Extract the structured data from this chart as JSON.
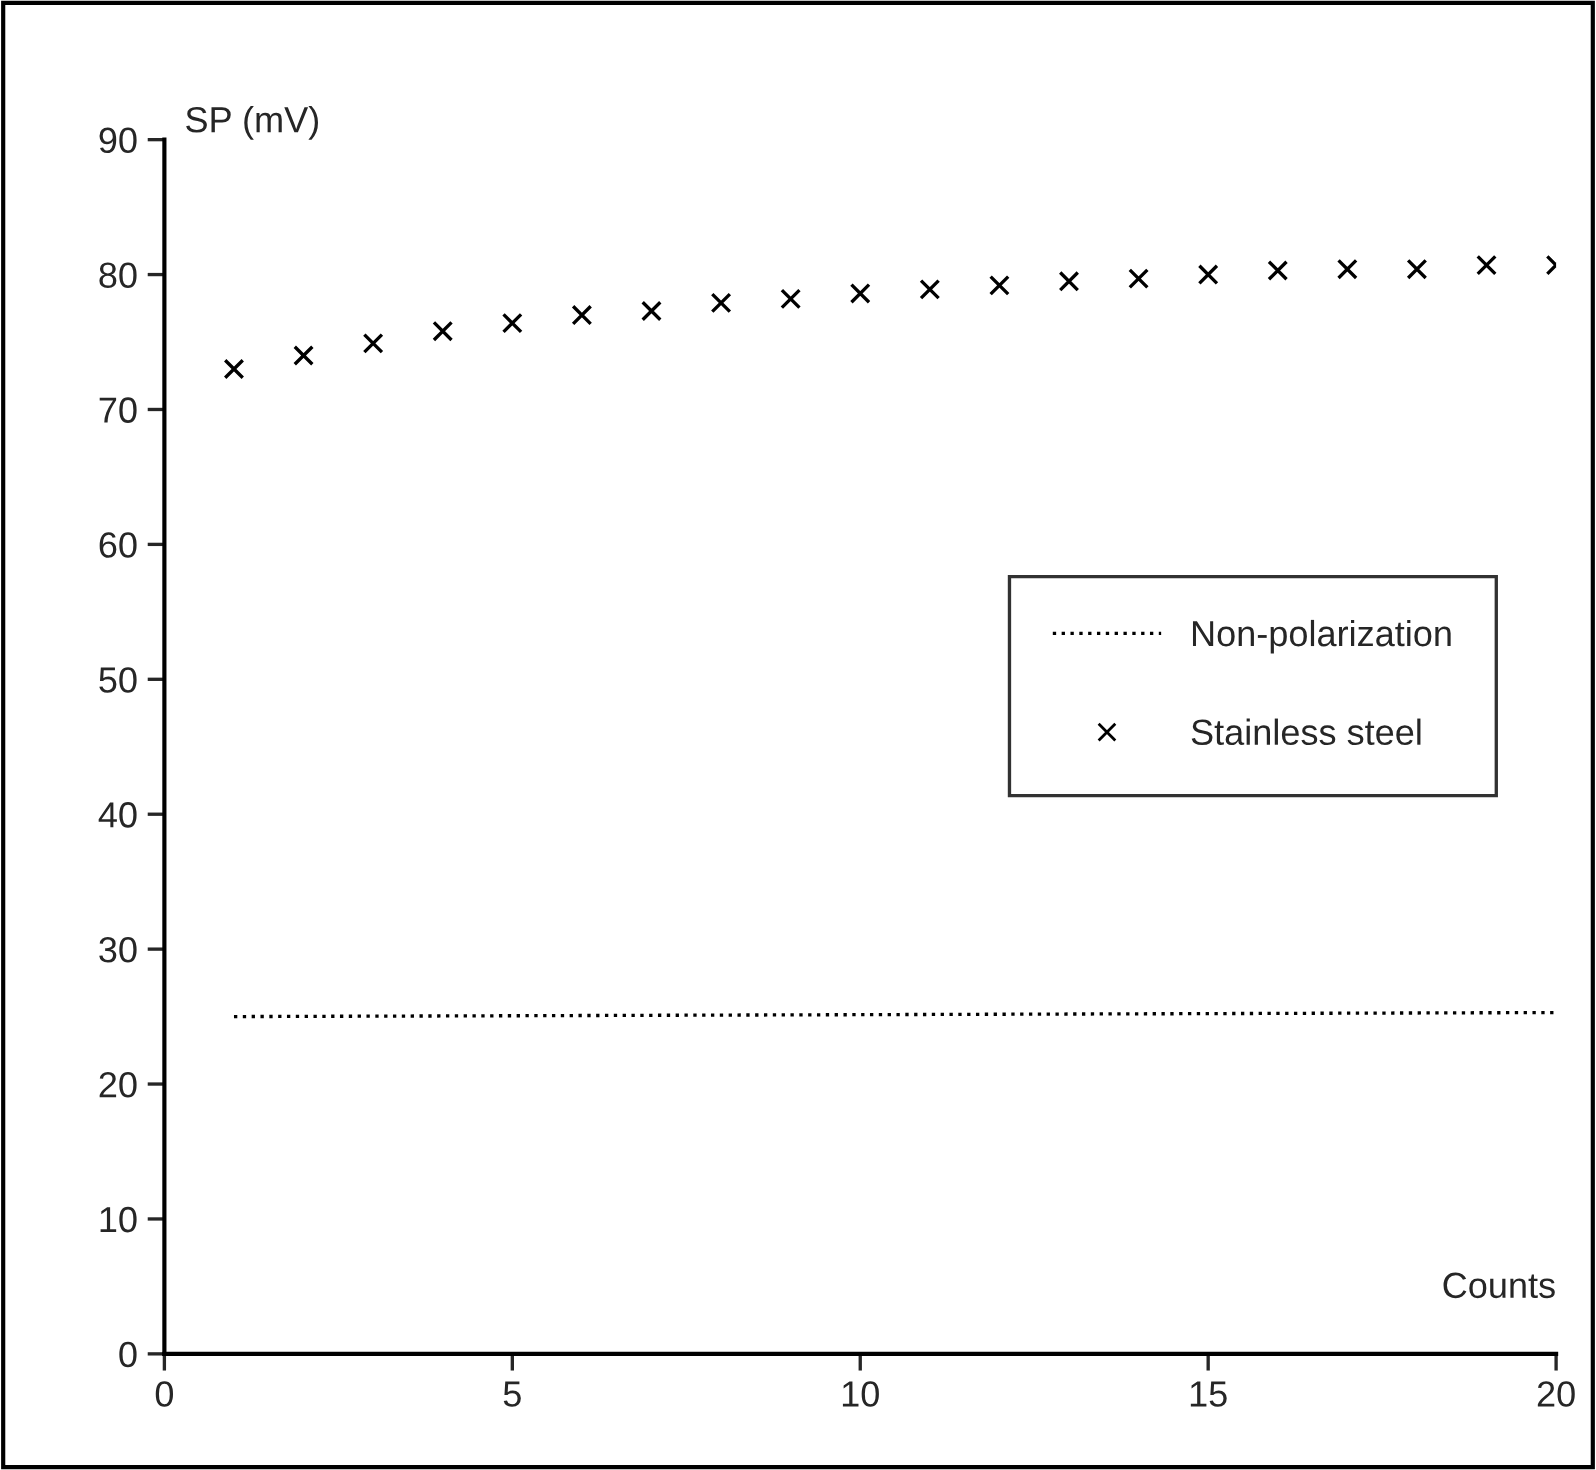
{
  "chart_data": {
    "type": "scatter",
    "xlabel": "Counts",
    "ylabel": "SP (mV)",
    "series": [
      {
        "name": "Non-polarization",
        "type": "line",
        "color": "#000000",
        "line_style": "dotted",
        "marker": "none",
        "x": [
          1,
          20
        ],
        "values": [
          25.0,
          25.3
        ]
      },
      {
        "name": "Stainless steel",
        "color": "#000000",
        "marker": "cross",
        "x": [
          1,
          2,
          3,
          4,
          5,
          6,
          7,
          8,
          9,
          10,
          11,
          12,
          13,
          14,
          15,
          16,
          17,
          18,
          19,
          20
        ],
        "values": [
          73.0,
          74.0,
          74.9,
          75.8,
          76.4,
          77.0,
          77.3,
          77.9,
          78.2,
          78.6,
          78.9,
          79.2,
          79.5,
          79.7,
          80.0,
          80.3,
          80.4,
          80.4,
          80.7,
          80.7
        ]
      }
    ],
    "xlim": [
      0,
      20
    ],
    "ylim": [
      0,
      90
    ],
    "xticks": [
      0,
      5,
      10,
      15,
      20
    ],
    "yticks": [
      0,
      10,
      20,
      30,
      40,
      50,
      60,
      70,
      80,
      90
    ],
    "grid": false,
    "legend": "right"
  }
}
